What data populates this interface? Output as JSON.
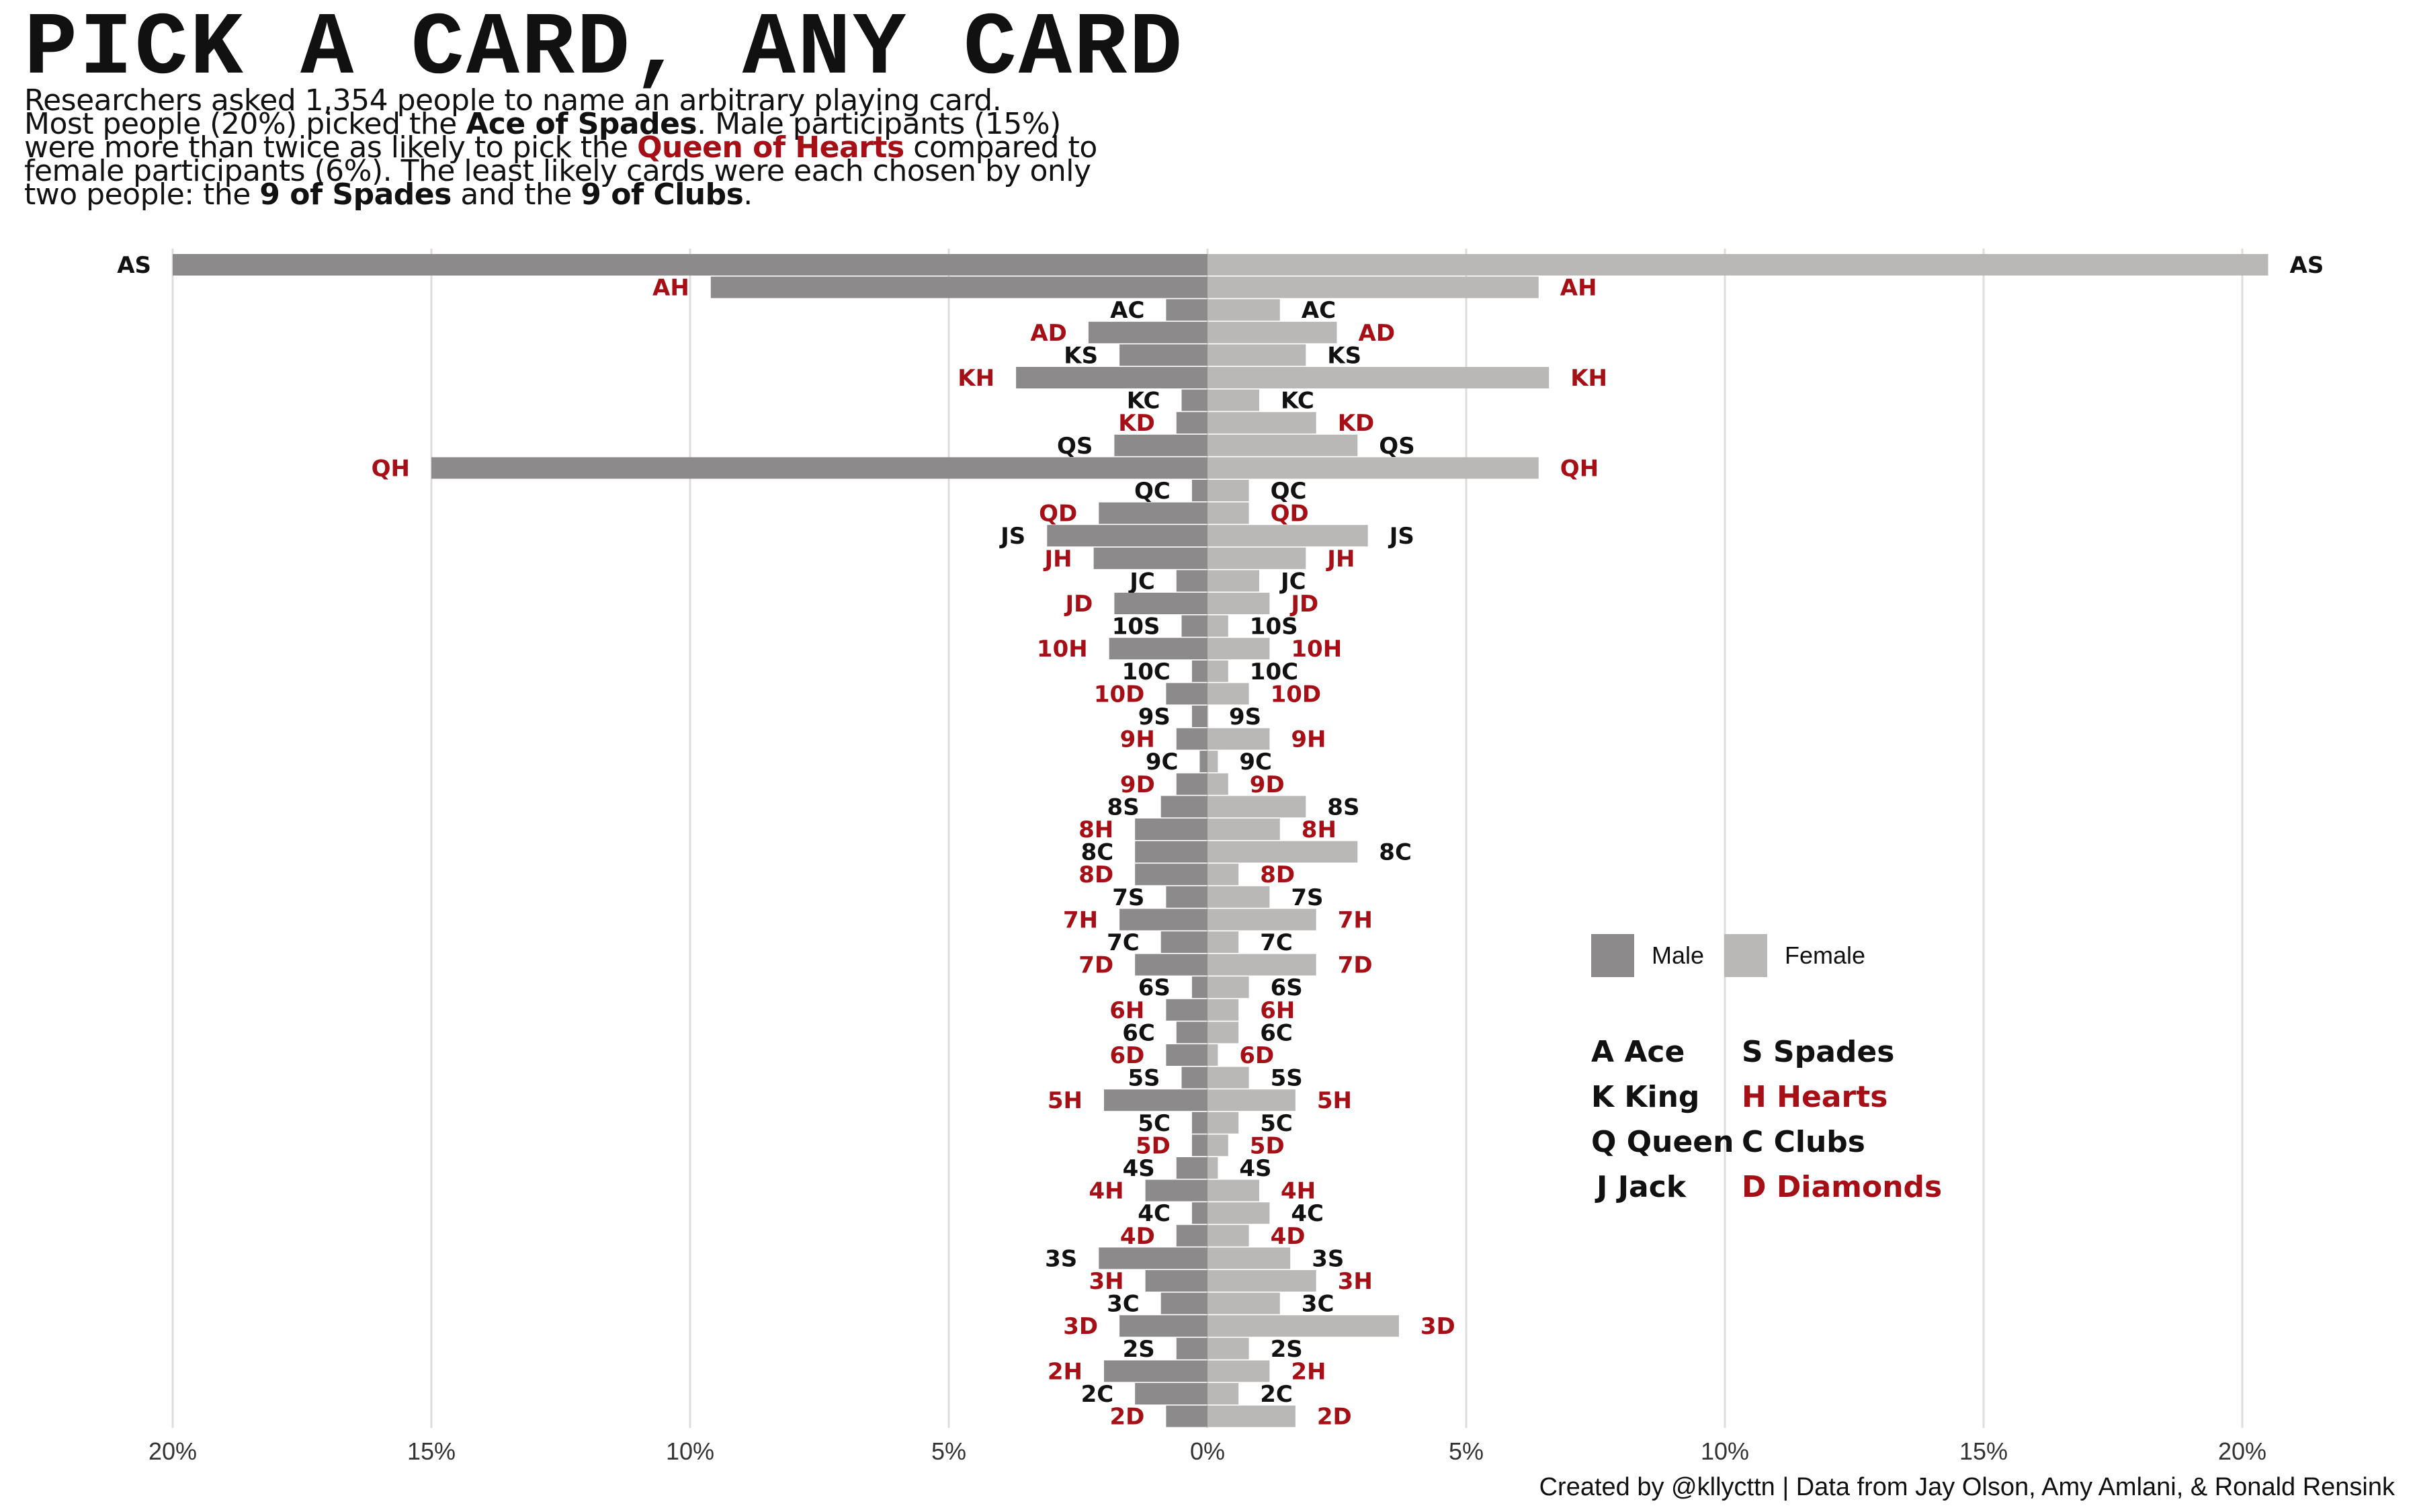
{
  "title": "PICK A CARD, ANY CARD",
  "subtitle": {
    "line1": "Researchers asked 1,354 people to name an arbitrary playing card.",
    "line2_a": "Most people (20%) picked the ",
    "line2_b": "Ace of Spades",
    "line2_c": ". Male participants (15%)",
    "line3_a": "were more than twice as likely to pick the ",
    "line3_b": "Queen of Hearts",
    "line3_c": " compared to",
    "line4": "female participants (6%). The least likely cards were each chosen by only",
    "line5_a": "two people: the ",
    "line5_b": "9 of Spades",
    "line5_c": " and the ",
    "line5_d": "9 of Clubs",
    "line5_e": "."
  },
  "legend": {
    "male_label": "Male",
    "female_label": "Female"
  },
  "key": {
    "left": [
      "A Ace",
      "K King",
      "Q Queen",
      "J Jack"
    ],
    "right": [
      "S Spades",
      "H Hearts",
      "C Clubs",
      "D Diamonds"
    ]
  },
  "caption": "Created by @kllycttn | Data from Jay Olson, Amy Amlani, & Ronald Rensink",
  "colors": {
    "male": "#8c8a8a",
    "female": "#bab7b7",
    "red_suit": "#a50f15",
    "black_suit": "#111111",
    "grid": "#dddddd"
  },
  "chart_data": {
    "type": "bar",
    "orientation": "horizontal-diverging",
    "xlim": [
      -20,
      20
    ],
    "tick_labels": [
      "20%",
      "15%",
      "10%",
      "5%",
      "0%",
      "5%",
      "10%",
      "15%",
      "20%"
    ],
    "tick_values": [
      -20,
      -15,
      -10,
      -5,
      0,
      5,
      10,
      15,
      20
    ],
    "grid": true,
    "legend_position": "right",
    "categories": [
      "AS",
      "AH",
      "AC",
      "AD",
      "KS",
      "KH",
      "KC",
      "KD",
      "QS",
      "QH",
      "QC",
      "QD",
      "JS",
      "JH",
      "JC",
      "JD",
      "10S",
      "10H",
      "10C",
      "10D",
      "9S",
      "9H",
      "9C",
      "9D",
      "8S",
      "8H",
      "8C",
      "8D",
      "7S",
      "7H",
      "7C",
      "7D",
      "6S",
      "6H",
      "6C",
      "6D",
      "5S",
      "5H",
      "5C",
      "5D",
      "4S",
      "4H",
      "4C",
      "4D",
      "3S",
      "3H",
      "3C",
      "3D",
      "2S",
      "2H",
      "2C",
      "2D"
    ],
    "series": [
      {
        "name": "Male",
        "values": [
          20.0,
          9.6,
          0.8,
          2.3,
          1.7,
          3.7,
          0.5,
          0.6,
          1.8,
          15.0,
          0.3,
          2.1,
          3.1,
          2.2,
          0.6,
          1.8,
          0.5,
          1.9,
          0.3,
          0.8,
          0.3,
          0.6,
          0.15,
          0.6,
          0.9,
          1.4,
          1.4,
          1.4,
          0.8,
          1.7,
          0.9,
          1.4,
          0.3,
          0.8,
          0.6,
          0.8,
          0.5,
          2.0,
          0.3,
          0.3,
          0.6,
          1.2,
          0.3,
          0.6,
          2.1,
          1.2,
          0.9,
          1.7,
          0.6,
          2.0,
          1.4,
          0.8
        ]
      },
      {
        "name": "Female",
        "values": [
          20.5,
          6.4,
          1.4,
          2.5,
          1.9,
          6.6,
          1.0,
          2.1,
          2.9,
          6.4,
          0.8,
          0.8,
          3.1,
          1.9,
          1.0,
          1.2,
          0.4,
          1.2,
          0.4,
          0.8,
          0.0,
          1.2,
          0.2,
          0.4,
          1.9,
          1.4,
          2.9,
          0.6,
          1.2,
          2.1,
          0.6,
          2.1,
          0.8,
          0.6,
          0.6,
          0.2,
          0.8,
          1.7,
          0.6,
          0.4,
          0.2,
          1.0,
          1.2,
          0.8,
          1.6,
          2.1,
          1.4,
          3.7,
          0.8,
          1.2,
          0.6,
          1.7
        ]
      }
    ]
  }
}
